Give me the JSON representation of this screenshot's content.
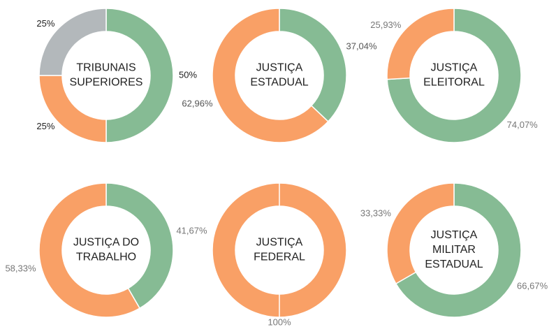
{
  "chart_data": [
    {
      "type": "pie",
      "title": [
        "TRIBUNAIS",
        "SUPERIORES"
      ],
      "values": [
        50,
        25,
        25
      ],
      "value_labels": [
        "50%",
        "25%",
        "25%"
      ],
      "colors": [
        "#86bb94",
        "#f9a066",
        "#b3b8bb"
      ],
      "label_color": "#222"
    },
    {
      "type": "pie",
      "title": [
        "JUSTIÇA",
        "ESTADUAL"
      ],
      "values": [
        37.04,
        62.96
      ],
      "value_labels": [
        "37,04%",
        "62,96%"
      ],
      "colors": [
        "#86bb94",
        "#f9a066"
      ],
      "label_color": "#555"
    },
    {
      "type": "pie",
      "title": [
        "JUSTIÇA",
        "ELEITORAL"
      ],
      "values": [
        74.07,
        25.93
      ],
      "value_labels": [
        "74,07%",
        "25,93%"
      ],
      "colors": [
        "#86bb94",
        "#f9a066"
      ],
      "label_color": "#777"
    },
    {
      "type": "pie",
      "title": [
        "JUSTIÇA DO",
        "TRABALHO"
      ],
      "values": [
        41.67,
        58.33
      ],
      "value_labels": [
        "41,67%",
        "58,33%"
      ],
      "colors": [
        "#86bb94",
        "#f9a066"
      ],
      "label_color": "#777"
    },
    {
      "type": "pie",
      "title": [
        "JUSTIÇA",
        "FEDERAL"
      ],
      "values": [
        100
      ],
      "value_labels": [
        "100%"
      ],
      "colors": [
        "#f9a066"
      ],
      "label_color": "#777"
    },
    {
      "type": "pie",
      "title": [
        "JUSTIÇA",
        "MILITAR",
        "ESTADUAL"
      ],
      "values": [
        66.67,
        33.33
      ],
      "value_labels": [
        "66,67%",
        "33,33%"
      ],
      "colors": [
        "#86bb94",
        "#f9a066"
      ],
      "label_color": "#777"
    }
  ]
}
